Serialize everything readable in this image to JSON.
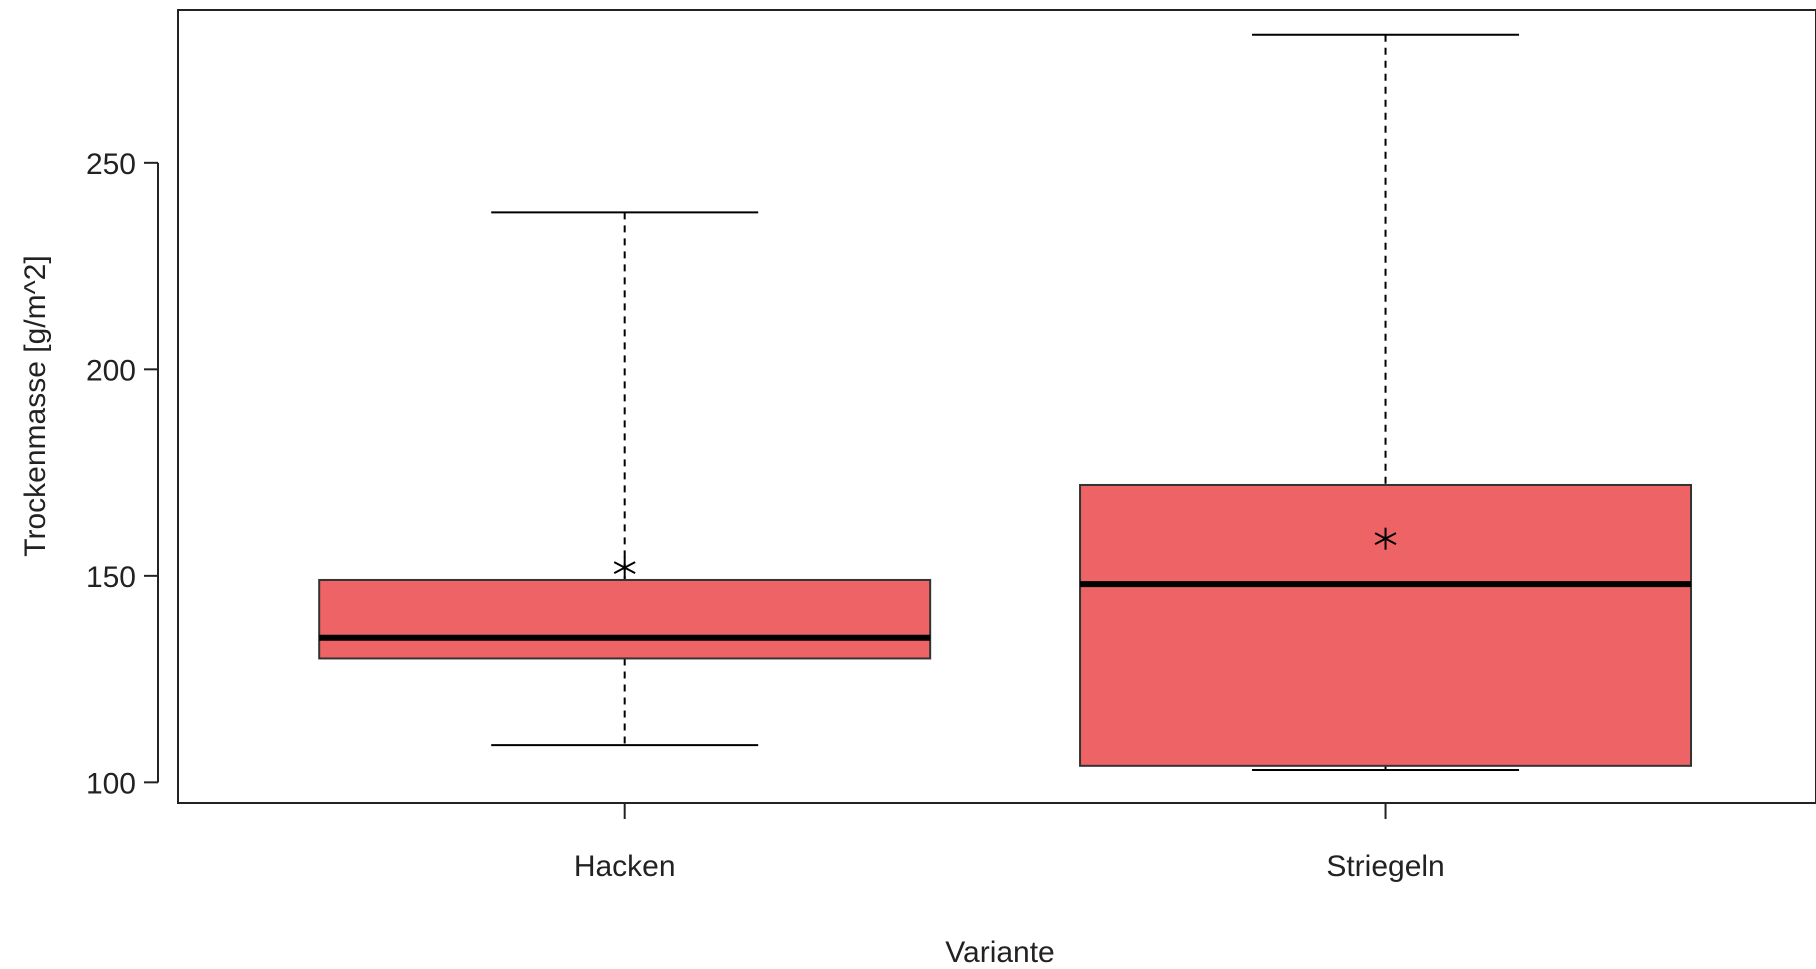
{
  "chart_data": {
    "type": "box",
    "xlabel": "Variante",
    "ylabel": "Trockenmasse [g/m^2]",
    "ylim": [
      95,
      287
    ],
    "yticks": [
      100,
      150,
      200,
      250
    ],
    "ytick_labels": [
      "100",
      "150",
      "200",
      "250"
    ],
    "box_color": "#ee6366",
    "line_color": "#000000",
    "grid": false,
    "legend": "none",
    "groups": [
      {
        "category": "Hacken",
        "whisker_low": 109,
        "q1": 130,
        "median": 135,
        "q3": 149,
        "whisker_high": 238,
        "mean": 152
      },
      {
        "category": "Striegeln",
        "whisker_low": 103,
        "q1": 104,
        "median": 148,
        "q3": 172,
        "whisker_high": 281,
        "mean": 159
      }
    ]
  }
}
